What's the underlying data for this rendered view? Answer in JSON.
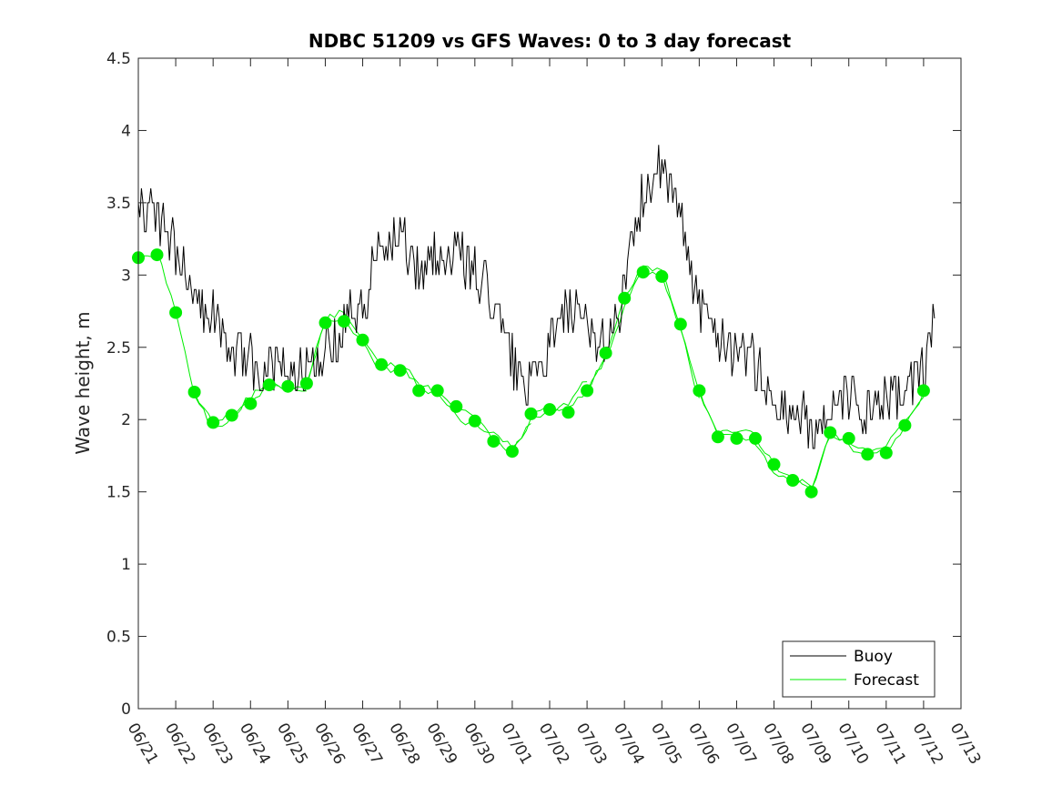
{
  "chart_data": {
    "type": "line",
    "title": "NDBC 51209 vs GFS Waves: 0 to 3 day forecast",
    "xlabel": "",
    "ylabel": "Wave height, m",
    "x_tick_labels": [
      "06/21",
      "06/22",
      "06/23",
      "06/24",
      "06/25",
      "06/26",
      "06/27",
      "06/28",
      "06/29",
      "06/30",
      "07/01",
      "07/02",
      "07/03",
      "07/04",
      "07/05",
      "07/06",
      "07/07",
      "07/08",
      "07/09",
      "07/10",
      "07/11",
      "07/12",
      "07/13"
    ],
    "x_range_days": [
      0,
      22
    ],
    "ylim": [
      0,
      4.5
    ],
    "y_ticks": [
      "0",
      "0.5",
      "1",
      "1.5",
      "2",
      "2.5",
      "3",
      "3.5",
      "4",
      "4.5"
    ],
    "legend": {
      "placement": "bottom-right",
      "entries": [
        "Buoy",
        "Forecast"
      ]
    },
    "colors": {
      "buoy": "#000000",
      "forecast": "#00ee00"
    },
    "buoy_anchors": {
      "x": [
        0,
        0.5,
        1,
        1.5,
        2,
        2.5,
        3,
        3.5,
        4,
        4.5,
        5,
        5.5,
        6,
        6.5,
        7,
        7.5,
        8,
        8.5,
        9,
        9.5,
        10,
        10.5,
        11,
        11.5,
        12,
        12.5,
        13,
        13.5,
        14,
        14.5,
        15,
        15.5,
        16,
        16.5,
        17,
        17.5,
        18,
        18.5,
        19,
        19.5,
        20,
        20.5,
        21,
        21.3
      ],
      "y": [
        3.5,
        3.4,
        3.2,
        2.9,
        2.7,
        2.5,
        2.4,
        2.35,
        2.3,
        2.4,
        2.5,
        2.65,
        2.8,
        3.2,
        3.3,
        3.0,
        3.15,
        3.15,
        3.0,
        2.8,
        2.4,
        2.2,
        2.5,
        2.75,
        2.6,
        2.5,
        2.9,
        3.6,
        3.7,
        3.4,
        2.8,
        2.6,
        2.5,
        2.4,
        2.1,
        2.05,
        1.95,
        2.0,
        2.15,
        2.05,
        2.1,
        2.2,
        2.35,
        2.8
      ]
    },
    "forecast_points": {
      "x": [
        0,
        0.5,
        1,
        1.5,
        2,
        2.5,
        3,
        3.5,
        4,
        4.5,
        5,
        5.5,
        6,
        6.5,
        7,
        7.5,
        8,
        8.5,
        9,
        9.5,
        10,
        10.5,
        11,
        11.5,
        12,
        12.5,
        13,
        13.5,
        14,
        14.5,
        15,
        15.5,
        16,
        16.5,
        17,
        17.5,
        18,
        18.5,
        19,
        19.5,
        20,
        20.5,
        21
      ],
      "y": [
        3.12,
        3.14,
        2.74,
        2.19,
        1.98,
        2.03,
        2.11,
        2.24,
        2.23,
        2.25,
        2.67,
        2.68,
        2.55,
        2.38,
        2.34,
        2.2,
        2.2,
        2.09,
        1.99,
        1.85,
        1.78,
        2.04,
        2.07,
        2.05,
        2.2,
        2.46,
        2.84,
        3.02,
        2.99,
        2.66,
        2.2,
        1.88,
        1.87,
        1.87,
        1.69,
        1.58,
        1.5,
        1.91,
        1.87,
        1.76,
        1.77,
        1.96,
        2.2
      ]
    }
  }
}
